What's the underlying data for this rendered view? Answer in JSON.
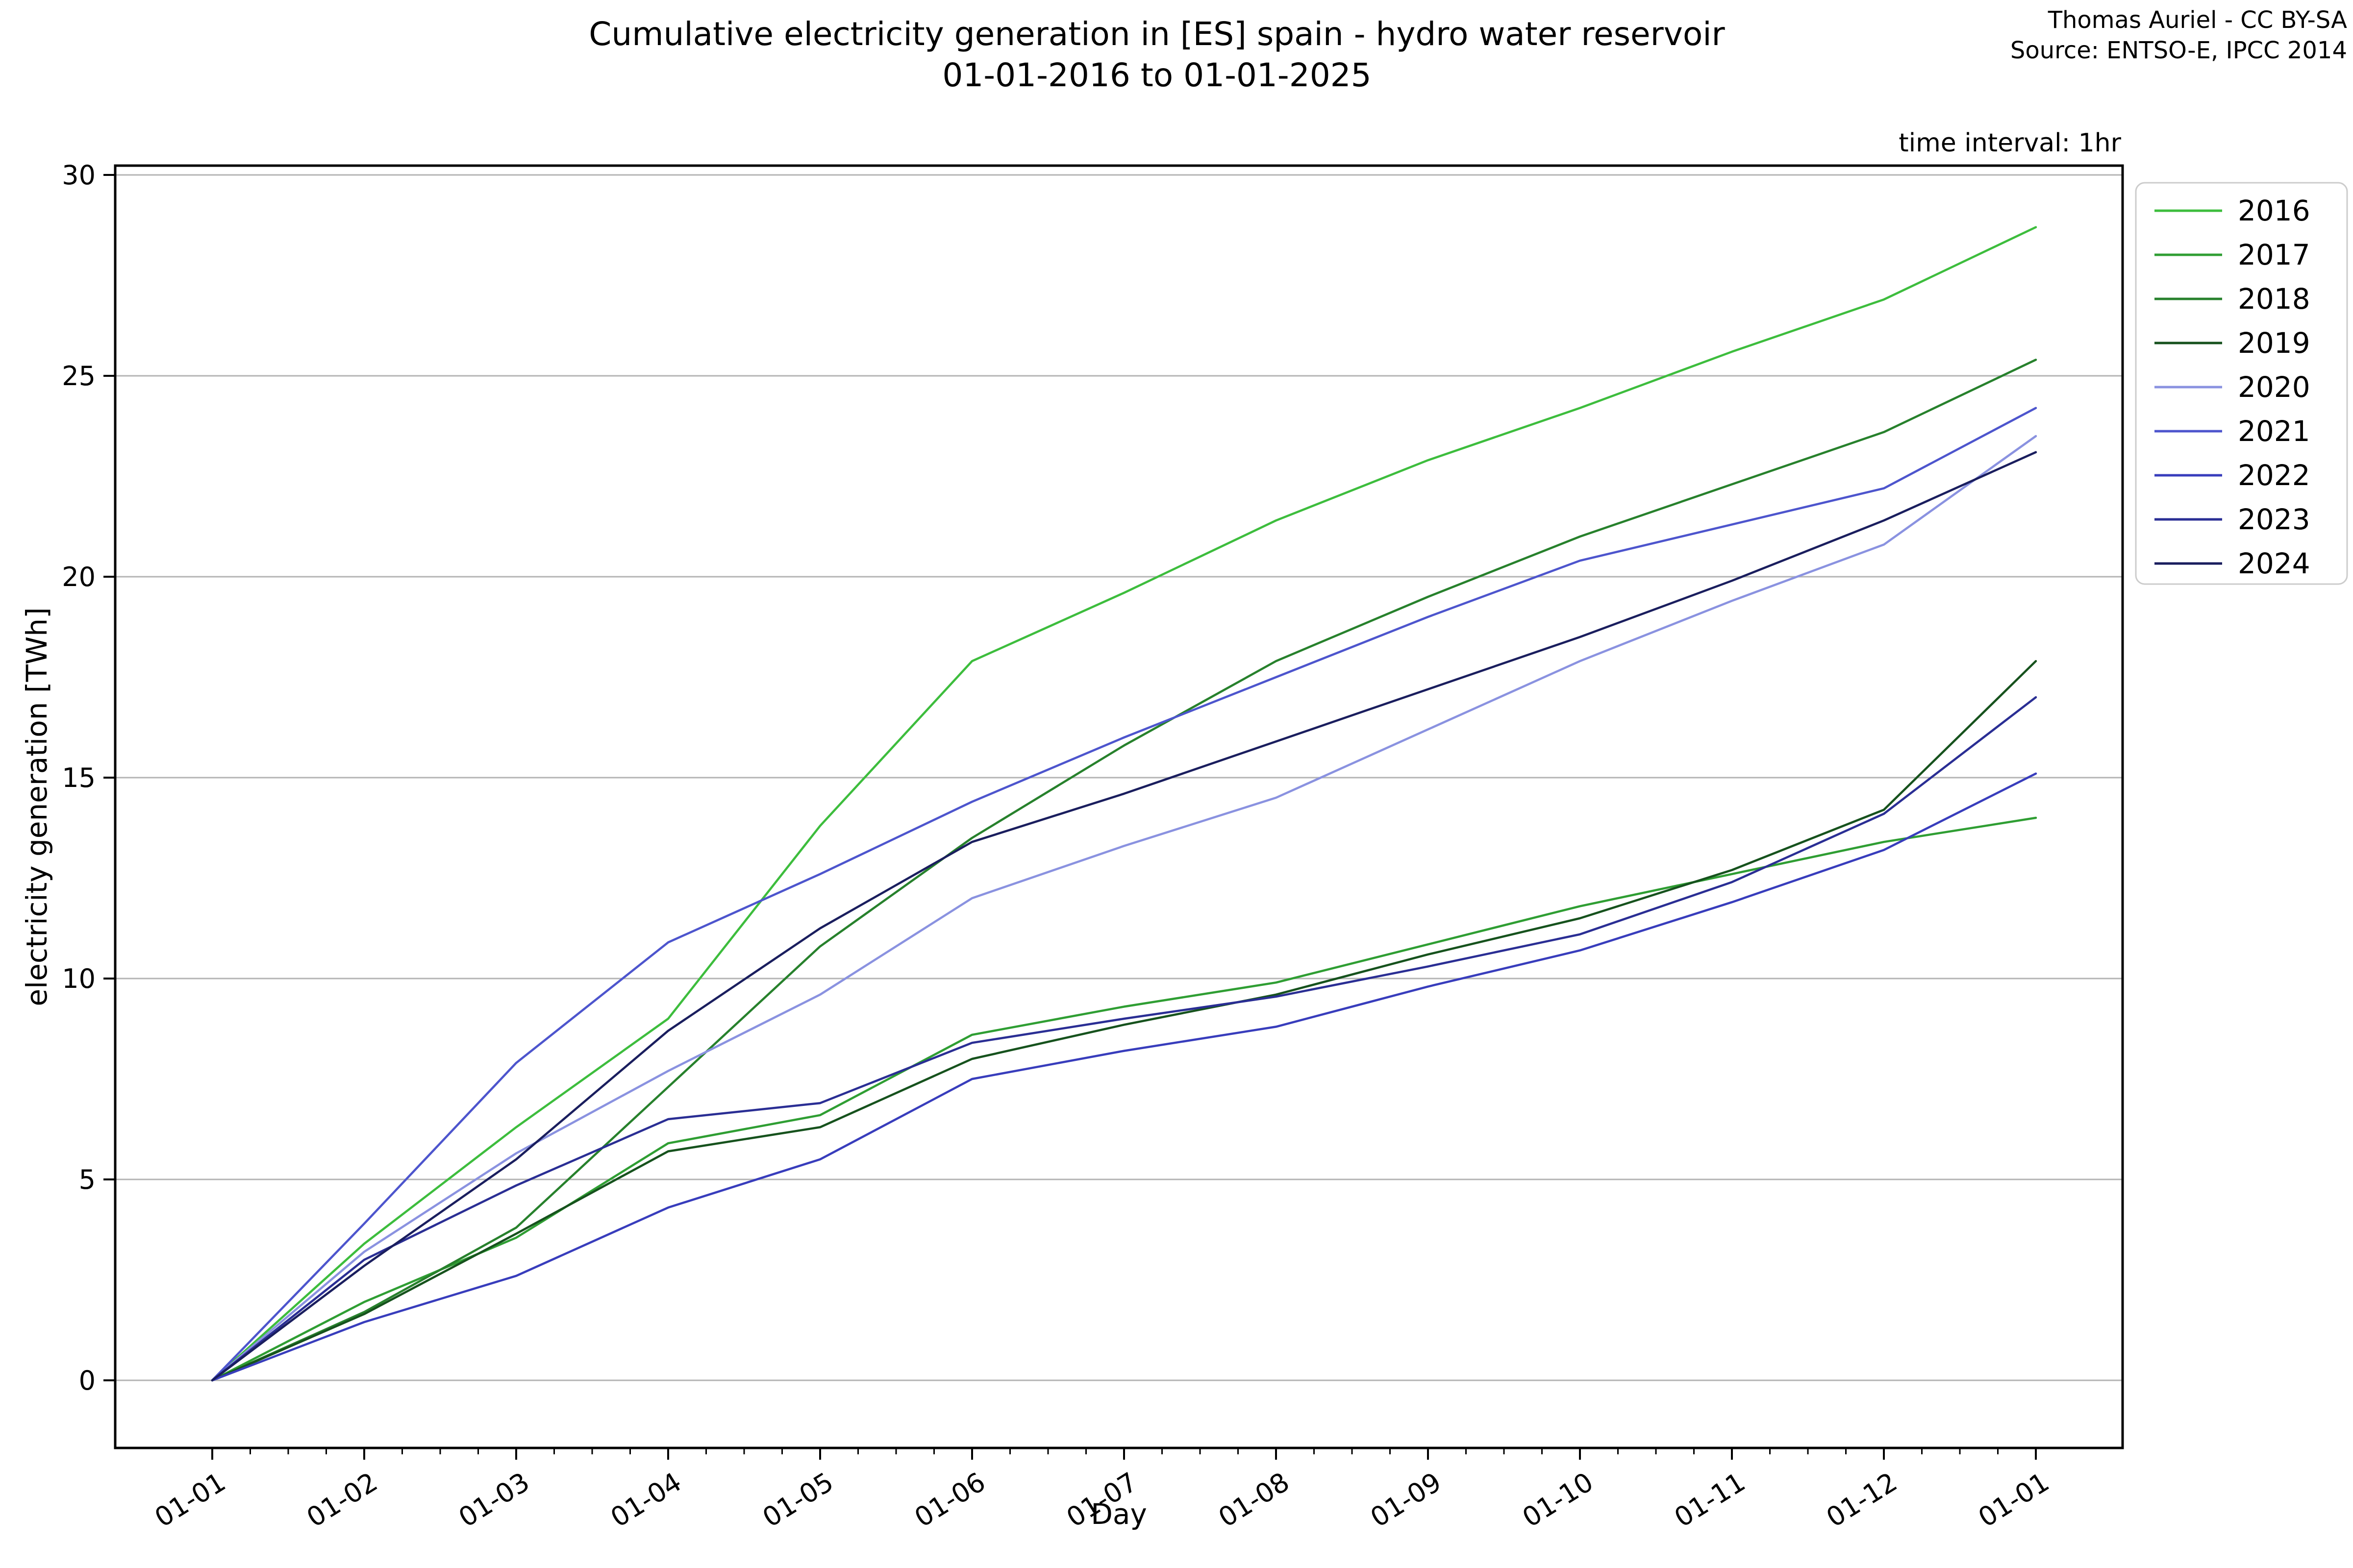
{
  "header": {
    "title_line1": "Cumulative electricity generation in [ES] spain - hydro water reservoir",
    "title_line2": "01-01-2016 to 01-01-2025",
    "attribution_line1": "Thomas Auriel - CC BY-SA",
    "attribution_line2": "Source: ENTSO-E, IPCC 2014",
    "time_interval_note": "time interval: 1hr"
  },
  "chart_data": {
    "type": "line",
    "title": "Cumulative electricity generation in [ES] spain - hydro water reservoir 01-01-2016 to 01-01-2025",
    "xlabel": "Day",
    "ylabel": "electricity generation [TWh]",
    "x_tick_labels": [
      "01-01",
      "01-02",
      "01-03",
      "01-04",
      "01-05",
      "01-06",
      "01-07",
      "01-08",
      "01-09",
      "01-10",
      "01-11",
      "01-12",
      "01-01"
    ],
    "y_ticks": [
      0,
      5,
      10,
      15,
      20,
      25,
      30
    ],
    "ylim": [
      -1.7,
      30.2
    ],
    "grid": true,
    "grid_color": "#b4b4b4",
    "legend_position": "upper right outside",
    "legend_border_color": "#cccccc",
    "series": [
      {
        "name": "2016",
        "color": "#3dbd3d",
        "values": [
          0,
          3.4,
          6.3,
          9.0,
          13.8,
          17.9,
          19.6,
          21.4,
          22.9,
          24.2,
          25.6,
          26.9,
          28.7
        ]
      },
      {
        "name": "2017",
        "color": "#2f9e33",
        "values": [
          0,
          1.95,
          3.55,
          5.9,
          6.6,
          8.6,
          9.3,
          9.9,
          10.85,
          11.8,
          12.6,
          13.4,
          14.0
        ]
      },
      {
        "name": "2018",
        "color": "#27812c",
        "values": [
          0,
          1.7,
          3.8,
          7.3,
          10.8,
          13.5,
          15.8,
          17.9,
          19.5,
          21.0,
          22.3,
          23.6,
          25.4
        ]
      },
      {
        "name": "2019",
        "color": "#16521d",
        "values": [
          0,
          1.65,
          3.65,
          5.7,
          6.3,
          8.0,
          8.85,
          9.6,
          10.6,
          11.5,
          12.7,
          14.2,
          17.9
        ]
      },
      {
        "name": "2020",
        "color": "#8a92e0",
        "values": [
          0,
          3.2,
          5.65,
          7.7,
          9.6,
          12.0,
          13.3,
          14.5,
          16.2,
          17.9,
          19.4,
          20.8,
          23.5
        ]
      },
      {
        "name": "2021",
        "color": "#4d55cd",
        "values": [
          0,
          3.9,
          7.9,
          10.9,
          12.6,
          14.4,
          16.0,
          17.5,
          19.0,
          20.4,
          21.3,
          22.2,
          24.2
        ]
      },
      {
        "name": "2022",
        "color": "#383dbc",
        "values": [
          0,
          1.45,
          2.6,
          4.3,
          5.5,
          7.5,
          8.2,
          8.8,
          9.8,
          10.7,
          11.9,
          13.2,
          15.1
        ]
      },
      {
        "name": "2023",
        "color": "#2a2e94",
        "values": [
          0,
          3.0,
          4.85,
          6.5,
          6.9,
          8.4,
          9.0,
          9.55,
          10.3,
          11.1,
          12.4,
          14.1,
          17.0
        ]
      },
      {
        "name": "2024",
        "color": "#1a1e5e",
        "values": [
          0,
          2.85,
          5.5,
          8.7,
          11.25,
          13.4,
          14.6,
          15.9,
          17.2,
          18.5,
          19.9,
          21.4,
          23.1
        ]
      }
    ]
  }
}
